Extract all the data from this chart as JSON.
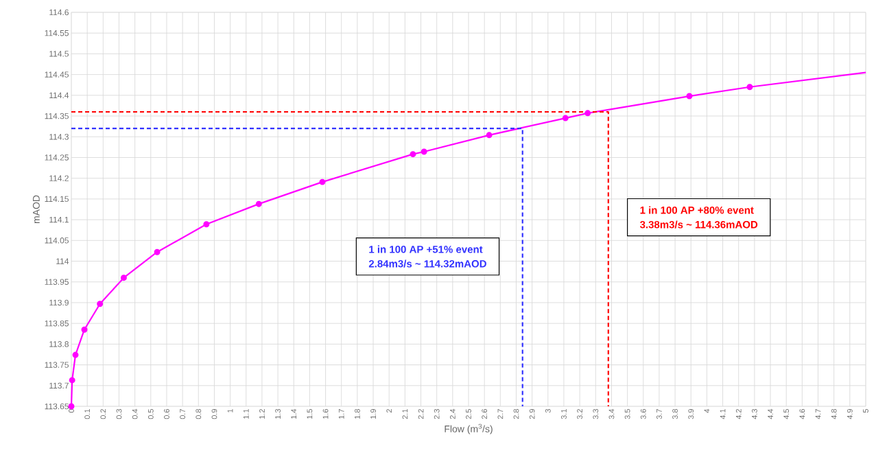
{
  "chart_data": {
    "type": "line",
    "xlabel": "Flow (m$^{3}$/s)",
    "ylabel": "mAOD",
    "series": [
      {
        "x": [
          0,
          0.005,
          0.026,
          0.082,
          0.18,
          0.33,
          0.54,
          0.85,
          1.18,
          1.58,
          2.15,
          2.22,
          2.63,
          3.11,
          3.25,
          3.89,
          4.27
        ],
        "values": [
          113.65,
          113.713,
          113.774,
          113.835,
          113.897,
          113.96,
          114.022,
          114.089,
          114.138,
          114.191,
          114.258,
          114.264,
          114.304,
          114.345,
          114.357,
          114.398,
          114.42
        ],
        "color": "#ff00ff",
        "marker": "circle",
        "line_style": "solid"
      },
      {
        "x": [
          4.27,
          5
        ],
        "values": [
          114.42,
          114.455
        ],
        "color": "#ff00ff",
        "marker": "none",
        "line_style": "solid"
      },
      {
        "x": [
          0,
          2.84,
          2.84
        ],
        "values": [
          114.32,
          114.32,
          113.65
        ],
        "color": "#3333ff",
        "marker": "none",
        "line_style": "dashed"
      },
      {
        "x": [
          0,
          3.38,
          3.38
        ],
        "values": [
          114.36,
          114.36,
          113.65
        ],
        "color": "#ff0000",
        "marker": "none",
        "line_style": "dashed"
      }
    ],
    "annotations": [
      "1 in 100 AP +51% event",
      "2.84m3/s ~ 114.32mAOD",
      "1 in 100 AP +80% event",
      "3.38m3/s ~ 114.36mAOD"
    ],
    "xlim": [
      0,
      5
    ],
    "ylim": [
      113.65,
      114.6
    ],
    "xticks": [
      0,
      0.1,
      0.2,
      0.3,
      0.4,
      0.5,
      0.6,
      0.7,
      0.8,
      0.9,
      1,
      1.1,
      1.2,
      1.3,
      1.4,
      1.5,
      1.6,
      1.7,
      1.8,
      1.9,
      2,
      2.1,
      2.2,
      2.3,
      2.4,
      2.5,
      2.6,
      2.7,
      2.8,
      2.9,
      3,
      3.1,
      3.2,
      3.3,
      3.4,
      3.5,
      3.6,
      3.7,
      3.8,
      3.9,
      4,
      4.1,
      4.2,
      4.3,
      4.4,
      4.5,
      4.6,
      4.7,
      4.8,
      4.9,
      5
    ],
    "yticks": [
      113.65,
      113.7,
      113.75,
      113.8,
      113.85,
      113.9,
      113.95,
      114,
      114.05,
      114.1,
      114.15,
      114.2,
      114.25,
      114.3,
      114.35,
      114.4,
      114.45,
      114.5,
      114.55,
      114.6
    ],
    "grid": true
  }
}
